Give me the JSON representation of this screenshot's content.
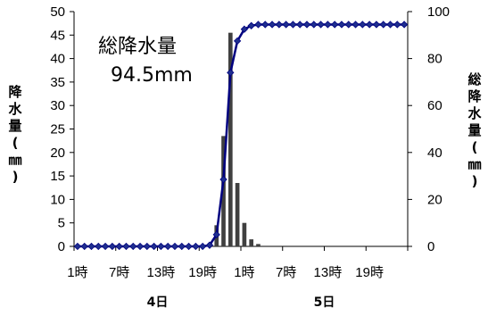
{
  "chart_data": {
    "type": "bar+line",
    "title": "",
    "annotation": {
      "line1": "総降水量",
      "line2": "94.5mm"
    },
    "ylabel_left": "降水量(㎜)",
    "ylabel_right": "総降水量(㎜)",
    "ylim_left": [
      0,
      50
    ],
    "ylim_right": [
      0,
      100
    ],
    "yticks_left": [
      "0",
      "5",
      "10",
      "15",
      "20",
      "25",
      "30",
      "35",
      "40",
      "45",
      "50"
    ],
    "yticks_right": [
      "0",
      "20",
      "40",
      "60",
      "80",
      "100"
    ],
    "x_tick_labels": [
      "1時",
      "7時",
      "13時",
      "19時",
      "1時",
      "7時",
      "13時",
      "19時"
    ],
    "day_labels": [
      "4日",
      "5日"
    ],
    "grid": false,
    "series": [
      {
        "kind": "bar",
        "axis": "left",
        "color": "#404040",
        "values": [
          0,
          0,
          0,
          0,
          0,
          0,
          0,
          0,
          0,
          0,
          0,
          0,
          0,
          0,
          0,
          0,
          0,
          0,
          0,
          0.5,
          4.5,
          23.5,
          45.5,
          13.5,
          5,
          1.5,
          0.5,
          0,
          0,
          0,
          0,
          0,
          0,
          0,
          0,
          0,
          0,
          0,
          0,
          0,
          0,
          0,
          0,
          0,
          0,
          0,
          0,
          0
        ]
      },
      {
        "kind": "line",
        "axis": "right",
        "color": "#000080",
        "values": [
          0,
          0,
          0,
          0,
          0,
          0,
          0,
          0,
          0,
          0,
          0,
          0,
          0,
          0,
          0,
          0,
          0,
          0,
          0,
          0.5,
          5,
          28.5,
          74,
          87.5,
          92.5,
          94,
          94.5,
          94.5,
          94.5,
          94.5,
          94.5,
          94.5,
          94.5,
          94.5,
          94.5,
          94.5,
          94.5,
          94.5,
          94.5,
          94.5,
          94.5,
          94.5,
          94.5,
          94.5,
          94.5,
          94.5,
          94.5,
          94.5
        ]
      }
    ]
  }
}
